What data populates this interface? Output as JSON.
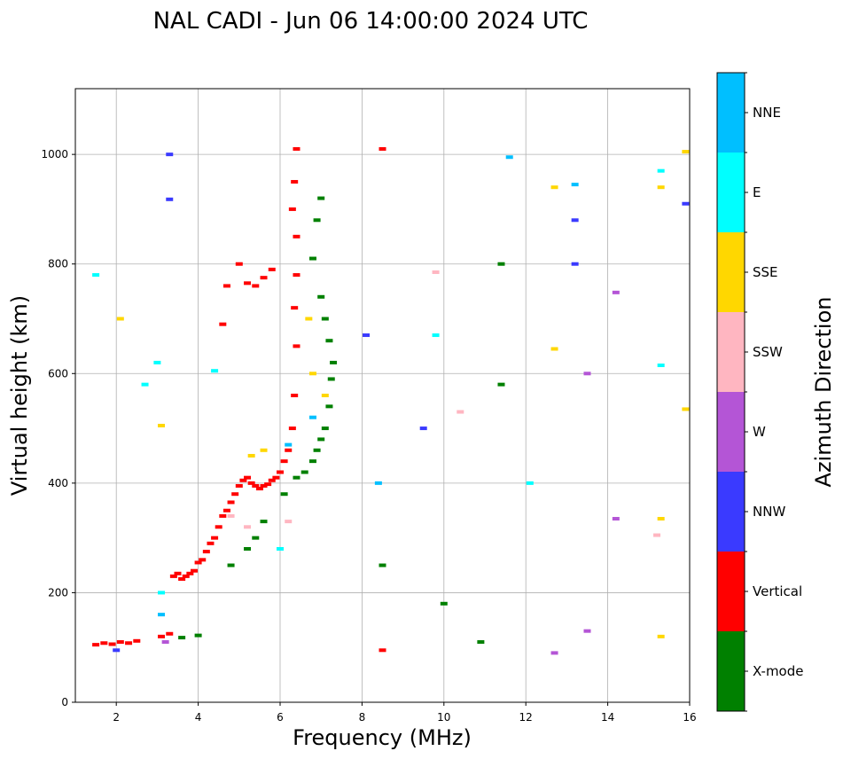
{
  "chart_data": {
    "type": "scatter",
    "title": "NAL CADI - Jun 06 14:00:00 2024 UTC",
    "xlabel": "Frequency (MHz)",
    "ylabel": "Virtual height (km)",
    "xlim": [
      1,
      16
    ],
    "ylim": [
      0,
      1120
    ],
    "xticks": [
      2,
      4,
      6,
      8,
      10,
      12,
      14,
      16
    ],
    "yticks": [
      0,
      200,
      400,
      600,
      800,
      1000
    ],
    "grid": true,
    "colorbar": {
      "label": "Azimuth Direction",
      "categories": [
        {
          "name": "X-mode",
          "color": "#008000"
        },
        {
          "name": "Vertical",
          "color": "#ff0000"
        },
        {
          "name": "NNW",
          "color": "#3a3aff"
        },
        {
          "name": "W",
          "color": "#b455d6"
        },
        {
          "name": "SSW",
          "color": "#ffb6c1"
        },
        {
          "name": "SSE",
          "color": "#ffd700"
        },
        {
          "name": "E",
          "color": "#00ffff"
        },
        {
          "name": "NNE",
          "color": "#00bfff"
        }
      ]
    },
    "series": [
      {
        "name": "Vertical",
        "points": [
          [
            1.5,
            105
          ],
          [
            1.7,
            108
          ],
          [
            1.9,
            106
          ],
          [
            2.1,
            110
          ],
          [
            2.3,
            108
          ],
          [
            2.5,
            112
          ],
          [
            3.1,
            120
          ],
          [
            3.3,
            125
          ],
          [
            3.4,
            230
          ],
          [
            3.5,
            235
          ],
          [
            3.6,
            225
          ],
          [
            3.7,
            230
          ],
          [
            3.8,
            235
          ],
          [
            3.9,
            240
          ],
          [
            4.0,
            255
          ],
          [
            4.1,
            260
          ],
          [
            4.2,
            275
          ],
          [
            4.3,
            290
          ],
          [
            4.4,
            300
          ],
          [
            4.5,
            320
          ],
          [
            4.6,
            340
          ],
          [
            4.7,
            350
          ],
          [
            4.8,
            365
          ],
          [
            4.9,
            380
          ],
          [
            5.0,
            395
          ],
          [
            5.1,
            405
          ],
          [
            5.2,
            410
          ],
          [
            5.3,
            400
          ],
          [
            5.4,
            395
          ],
          [
            5.5,
            390
          ],
          [
            5.6,
            395
          ],
          [
            5.7,
            398
          ],
          [
            5.8,
            405
          ],
          [
            5.9,
            410
          ],
          [
            6.0,
            420
          ],
          [
            6.1,
            440
          ],
          [
            6.2,
            460
          ],
          [
            6.3,
            500
          ],
          [
            6.35,
            560
          ],
          [
            6.4,
            650
          ],
          [
            6.35,
            720
          ],
          [
            6.4,
            780
          ],
          [
            6.4,
            850
          ],
          [
            6.3,
            900
          ],
          [
            6.35,
            950
          ],
          [
            6.4,
            1010
          ],
          [
            4.7,
            760
          ],
          [
            5.2,
            765
          ],
          [
            5.4,
            760
          ],
          [
            5.6,
            775
          ],
          [
            5.8,
            790
          ],
          [
            5.0,
            800
          ],
          [
            4.6,
            690
          ],
          [
            8.5,
            95
          ],
          [
            8.5,
            1010
          ]
        ]
      },
      {
        "name": "X-mode",
        "points": [
          [
            3.6,
            118
          ],
          [
            4.0,
            122
          ],
          [
            4.8,
            250
          ],
          [
            5.2,
            280
          ],
          [
            5.4,
            300
          ],
          [
            5.6,
            330
          ],
          [
            6.1,
            380
          ],
          [
            6.4,
            410
          ],
          [
            6.6,
            420
          ],
          [
            6.8,
            440
          ],
          [
            6.9,
            460
          ],
          [
            7.0,
            480
          ],
          [
            7.1,
            500
          ],
          [
            7.2,
            540
          ],
          [
            7.25,
            590
          ],
          [
            7.3,
            620
          ],
          [
            7.2,
            660
          ],
          [
            7.1,
            700
          ],
          [
            7.0,
            740
          ],
          [
            6.8,
            810
          ],
          [
            6.9,
            880
          ],
          [
            7.0,
            920
          ],
          [
            8.5,
            250
          ],
          [
            10.0,
            180
          ],
          [
            10.9,
            110
          ],
          [
            11.4,
            580
          ],
          [
            11.4,
            800
          ]
        ]
      },
      {
        "name": "NNW",
        "points": [
          [
            2.0,
            95
          ],
          [
            3.3,
            1000
          ],
          [
            3.3,
            918
          ],
          [
            8.1,
            670
          ],
          [
            9.5,
            500
          ],
          [
            13.2,
            800
          ],
          [
            13.2,
            880
          ],
          [
            15.9,
            910
          ]
        ]
      },
      {
        "name": "W",
        "points": [
          [
            3.2,
            110
          ],
          [
            12.7,
            90
          ],
          [
            13.5,
            130
          ],
          [
            14.2,
            748
          ],
          [
            14.2,
            335
          ],
          [
            13.5,
            600
          ]
        ]
      },
      {
        "name": "SSW",
        "points": [
          [
            4.8,
            340
          ],
          [
            5.2,
            320
          ],
          [
            6.2,
            330
          ],
          [
            9.8,
            785
          ],
          [
            10.4,
            530
          ],
          [
            15.2,
            305
          ]
        ]
      },
      {
        "name": "SSE",
        "points": [
          [
            2.1,
            700
          ],
          [
            3.1,
            505
          ],
          [
            5.3,
            450
          ],
          [
            5.6,
            460
          ],
          [
            6.7,
            700
          ],
          [
            6.8,
            600
          ],
          [
            7.1,
            560
          ],
          [
            12.7,
            645
          ],
          [
            12.7,
            940
          ],
          [
            15.3,
            940
          ],
          [
            15.3,
            120
          ],
          [
            15.3,
            335
          ],
          [
            15.9,
            1005
          ],
          [
            15.9,
            535
          ]
        ]
      },
      {
        "name": "E",
        "points": [
          [
            1.5,
            780
          ],
          [
            2.7,
            580
          ],
          [
            3.0,
            620
          ],
          [
            3.1,
            200
          ],
          [
            4.4,
            605
          ],
          [
            6.0,
            280
          ],
          [
            9.8,
            670
          ],
          [
            12.1,
            400
          ],
          [
            15.3,
            970
          ],
          [
            15.3,
            615
          ]
        ]
      },
      {
        "name": "NNE",
        "points": [
          [
            3.1,
            160
          ],
          [
            6.2,
            470
          ],
          [
            6.8,
            520
          ],
          [
            8.4,
            400
          ],
          [
            11.6,
            995
          ],
          [
            13.2,
            945
          ]
        ]
      }
    ]
  }
}
